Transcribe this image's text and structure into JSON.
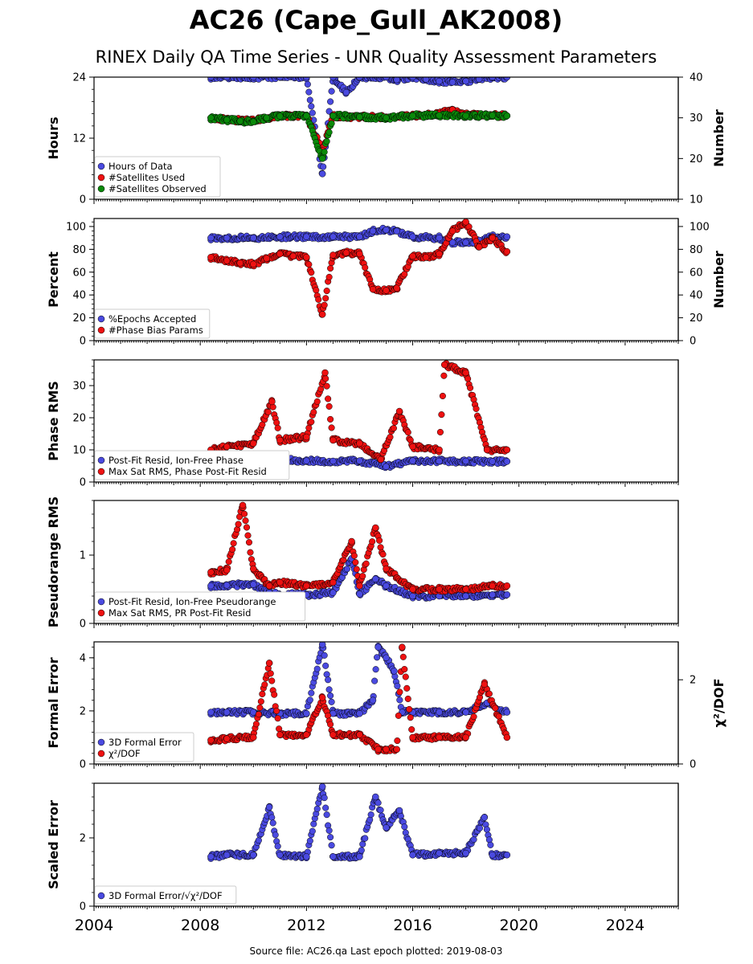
{
  "figure": {
    "title": "AC26 (Cape_Gull_AK2008)",
    "subtitle": "RINEX Daily QA Time Series - UNR Quality Assessment Parameters",
    "source_note": "Source file: AC26.qa Last epoch plotted: 2019-08-03"
  },
  "colors": {
    "blue": "#4a4ae0",
    "red": "#ee1111",
    "green": "#0a8a0a",
    "edge": "#000000"
  },
  "chart_data": [
    {
      "type": "scatter",
      "ylabel_left": "Hours",
      "ylabel_right": "Number",
      "xlim": [
        2004,
        2026
      ],
      "ylim_left": [
        0,
        24
      ],
      "ylim_right": [
        10,
        40
      ],
      "x_ticks": [
        "2004",
        "2008",
        "2012",
        "2016",
        "2020",
        "2024"
      ],
      "y_ticks_left": [
        "0",
        "12",
        "24"
      ],
      "y_ticks_right": [
        "10",
        "20",
        "30",
        "40"
      ],
      "legend_position": "lower-left",
      "series": [
        {
          "name": "Hours of Data",
          "axis": "left",
          "color": "blue",
          "x": [
            2008.4,
            2009.0,
            2010.0,
            2011.0,
            2012.0,
            2012.6,
            2013.0,
            2013.5,
            2014.0,
            2015.0,
            2015.4,
            2016.0,
            2016.5,
            2017.0,
            2017.5,
            2018.0,
            2018.5,
            2019.0,
            2019.55
          ],
          "y": [
            24.0,
            24.0,
            24.0,
            24.0,
            24.0,
            5.0,
            24.0,
            21.0,
            24.0,
            24.0,
            23.5,
            24.0,
            23.6,
            23.2,
            23.0,
            23.2,
            23.6,
            24.0,
            24.0
          ]
        },
        {
          "name": "#Satellites Used",
          "axis": "right",
          "color": "red",
          "x": [
            2008.4,
            2009.0,
            2009.5,
            2010.0,
            2011.0,
            2012.0,
            2012.6,
            2013.0,
            2014.0,
            2015.0,
            2016.0,
            2017.0,
            2017.5,
            2018.0,
            2019.0,
            2019.55
          ],
          "y": [
            30.0,
            29.6,
            29.4,
            29.3,
            30.5,
            30.5,
            22.0,
            30.4,
            30.2,
            30.2,
            30.5,
            31.0,
            32.0,
            30.8,
            30.6,
            30.5
          ]
        },
        {
          "name": "#Satellites Observed",
          "axis": "right",
          "color": "green",
          "x": [
            2008.4,
            2009.0,
            2009.5,
            2010.0,
            2010.5,
            2011.0,
            2012.0,
            2012.6,
            2013.0,
            2014.0,
            2015.0,
            2016.0,
            2017.0,
            2018.0,
            2019.0,
            2019.55
          ],
          "y": [
            30.0,
            29.5,
            29.2,
            29.0,
            30.0,
            30.4,
            30.5,
            20.0,
            30.5,
            30.2,
            30.0,
            30.5,
            30.6,
            30.5,
            30.6,
            30.5
          ]
        }
      ]
    },
    {
      "type": "scatter",
      "ylabel_left": "Percent",
      "ylabel_right": "Number",
      "xlim": [
        2004,
        2026
      ],
      "ylim_left": [
        0,
        107
      ],
      "ylim_right": [
        0,
        107
      ],
      "x_ticks": [
        "2004",
        "2008",
        "2012",
        "2016",
        "2020",
        "2024"
      ],
      "y_ticks_left": [
        "0",
        "20",
        "40",
        "60",
        "80",
        "100"
      ],
      "y_ticks_right": [
        "0",
        "20",
        "40",
        "60",
        "80",
        "100"
      ],
      "legend_position": "lower-left",
      "series": [
        {
          "name": "%Epochs Accepted",
          "axis": "left",
          "color": "blue",
          "x": [
            2008.4,
            2009.0,
            2010.0,
            2011.0,
            2012.0,
            2013.0,
            2014.0,
            2014.5,
            2015.0,
            2015.4,
            2016.0,
            2017.0,
            2017.5,
            2018.0,
            2018.5,
            2019.0,
            2019.55
          ],
          "y": [
            90,
            90,
            90,
            91,
            91,
            91,
            91,
            96,
            97,
            96,
            91,
            90,
            86,
            86,
            88,
            91,
            91
          ]
        },
        {
          "name": "#Phase Bias Params",
          "axis": "left",
          "color": "red",
          "x": [
            2008.4,
            2009.0,
            2009.5,
            2010.0,
            2010.5,
            2011.0,
            2011.5,
            2012.0,
            2012.6,
            2013.0,
            2013.5,
            2014.0,
            2014.5,
            2015.0,
            2015.4,
            2016.0,
            2016.5,
            2017.0,
            2017.5,
            2018.0,
            2018.5,
            2019.0,
            2019.55
          ],
          "y": [
            73,
            70,
            68,
            67,
            72,
            76,
            74,
            73,
            23,
            75,
            77,
            76,
            45,
            44,
            46,
            74,
            73,
            76,
            96,
            104,
            82,
            90,
            78
          ]
        }
      ]
    },
    {
      "type": "scatter",
      "ylabel_left": "Phase RMS",
      "xlim": [
        2004,
        2026
      ],
      "ylim_left": [
        0,
        38
      ],
      "x_ticks": [
        "2004",
        "2008",
        "2012",
        "2016",
        "2020",
        "2024"
      ],
      "y_ticks_left": [
        "0",
        "10",
        "20",
        "30"
      ],
      "legend_position": "lower-left",
      "series": [
        {
          "name": "Post-Fit Resid, Ion-Free Phase",
          "axis": "left",
          "color": "blue",
          "x": [
            2008.4,
            2009.0,
            2010.0,
            2011.0,
            2012.0,
            2013.0,
            2014.0,
            2015.0,
            2016.0,
            2017.0,
            2018.0,
            2019.0,
            2019.55
          ],
          "y": [
            6.5,
            6.5,
            6.8,
            6.8,
            6.6,
            6.5,
            6.6,
            4.8,
            6.6,
            6.5,
            6.5,
            6.4,
            6.4
          ]
        },
        {
          "name": "Max Sat RMS, Phase Post-Fit Resid",
          "axis": "left",
          "color": "red",
          "x": [
            2008.4,
            2009.0,
            2010.0,
            2010.7,
            2011.0,
            2012.0,
            2012.7,
            2013.0,
            2014.0,
            2014.8,
            2015.5,
            2016.0,
            2017.0,
            2017.2,
            2018.0,
            2018.8,
            2019.55
          ],
          "y": [
            10,
            11,
            12,
            25,
            13,
            14,
            34,
            13,
            12,
            7,
            22,
            11,
            10,
            36.5,
            34,
            10,
            10
          ]
        }
      ]
    },
    {
      "type": "scatter",
      "ylabel_left": "Pseudorange RMS",
      "xlim": [
        2004,
        2026
      ],
      "ylim_left": [
        0,
        1.8
      ],
      "x_ticks": [
        "2004",
        "2008",
        "2012",
        "2016",
        "2020",
        "2024"
      ],
      "y_ticks_left": [
        "0",
        "1"
      ],
      "legend_position": "lower-left",
      "series": [
        {
          "name": "Post-Fit Resid, Ion-Free Pseudorange",
          "axis": "left",
          "color": "blue",
          "x": [
            2008.4,
            2009.0,
            2010.0,
            2010.6,
            2011.0,
            2012.0,
            2013.0,
            2013.7,
            2014.0,
            2014.6,
            2015.0,
            2016.0,
            2017.0,
            2018.0,
            2019.0,
            2019.55
          ],
          "y": [
            0.55,
            0.56,
            0.57,
            0.45,
            0.42,
            0.42,
            0.45,
            0.95,
            0.43,
            0.65,
            0.55,
            0.4,
            0.4,
            0.4,
            0.42,
            0.42
          ]
        },
        {
          "name": "Max Sat RMS, PR Post-Fit Resid",
          "axis": "left",
          "color": "red",
          "x": [
            2008.4,
            2009.0,
            2009.6,
            2010.0,
            2010.6,
            2011.0,
            2012.0,
            2013.0,
            2013.7,
            2014.0,
            2014.6,
            2015.0,
            2016.0,
            2017.0,
            2018.0,
            2019.0,
            2019.55
          ],
          "y": [
            0.75,
            0.78,
            1.73,
            0.8,
            0.55,
            0.6,
            0.55,
            0.6,
            1.2,
            0.55,
            1.4,
            0.8,
            0.5,
            0.5,
            0.5,
            0.55,
            0.55
          ]
        }
      ]
    },
    {
      "type": "scatter",
      "ylabel_left": "Formal Error",
      "ylabel_right": "χ²/DOF",
      "xlim": [
        2004,
        2026
      ],
      "ylim_left": [
        0,
        4.6
      ],
      "ylim_right": [
        0,
        2.9
      ],
      "x_ticks": [
        "2004",
        "2008",
        "2012",
        "2016",
        "2020",
        "2024"
      ],
      "y_ticks_left": [
        "0",
        "2",
        "4"
      ],
      "y_ticks_right": [
        "0",
        "2"
      ],
      "legend_position": "lower-left",
      "series": [
        {
          "name": "3D Formal Error",
          "axis": "left",
          "color": "blue",
          "x": [
            2008.4,
            2009.0,
            2010.0,
            2011.0,
            2012.0,
            2012.6,
            2013.0,
            2014.0,
            2014.5,
            2014.7,
            2015.0,
            2015.3,
            2015.6,
            2016.0,
            2017.0,
            2018.0,
            2018.8,
            2019.55
          ],
          "y": [
            1.95,
            1.95,
            1.95,
            1.9,
            1.9,
            4.5,
            1.9,
            1.9,
            2.4,
            4.4,
            4.0,
            3.5,
            1.95,
            1.95,
            1.95,
            1.95,
            2.3,
            1.95
          ]
        },
        {
          "name": "χ²/DOF",
          "axis": "left",
          "color": "red",
          "x": [
            2008.4,
            2009.0,
            2010.0,
            2010.6,
            2011.0,
            2012.0,
            2012.6,
            2013.0,
            2014.0,
            2014.7,
            2015.0,
            2015.4,
            2015.6,
            2016.0,
            2017.0,
            2018.0,
            2018.7,
            2019.55
          ],
          "y": [
            0.9,
            0.95,
            1.0,
            3.8,
            1.1,
            1.1,
            2.5,
            1.1,
            1.1,
            0.55,
            0.55,
            0.55,
            4.4,
            1.0,
            1.0,
            1.0,
            3.0,
            1.0
          ]
        }
      ]
    },
    {
      "type": "scatter",
      "ylabel_left": "Scaled Error",
      "xlim": [
        2004,
        2026
      ],
      "ylim_left": [
        0,
        3.6
      ],
      "x_ticks": [
        "2004",
        "2008",
        "2012",
        "2016",
        "2020",
        "2024"
      ],
      "y_ticks_left": [
        "0",
        "2"
      ],
      "legend_position": "lower-left",
      "series": [
        {
          "name": "3D Formal Error/√χ²/DOF",
          "axis": "left",
          "color": "blue",
          "x": [
            2008.4,
            2009.0,
            2010.0,
            2010.6,
            2011.0,
            2012.0,
            2012.6,
            2013.0,
            2014.0,
            2014.6,
            2015.0,
            2015.5,
            2016.0,
            2017.0,
            2018.0,
            2018.7,
            2019.0,
            2019.55
          ],
          "y": [
            1.45,
            1.5,
            1.5,
            2.9,
            1.5,
            1.45,
            3.5,
            1.45,
            1.45,
            3.2,
            2.3,
            2.8,
            1.5,
            1.55,
            1.55,
            2.6,
            1.5,
            1.5
          ]
        }
      ]
    }
  ]
}
